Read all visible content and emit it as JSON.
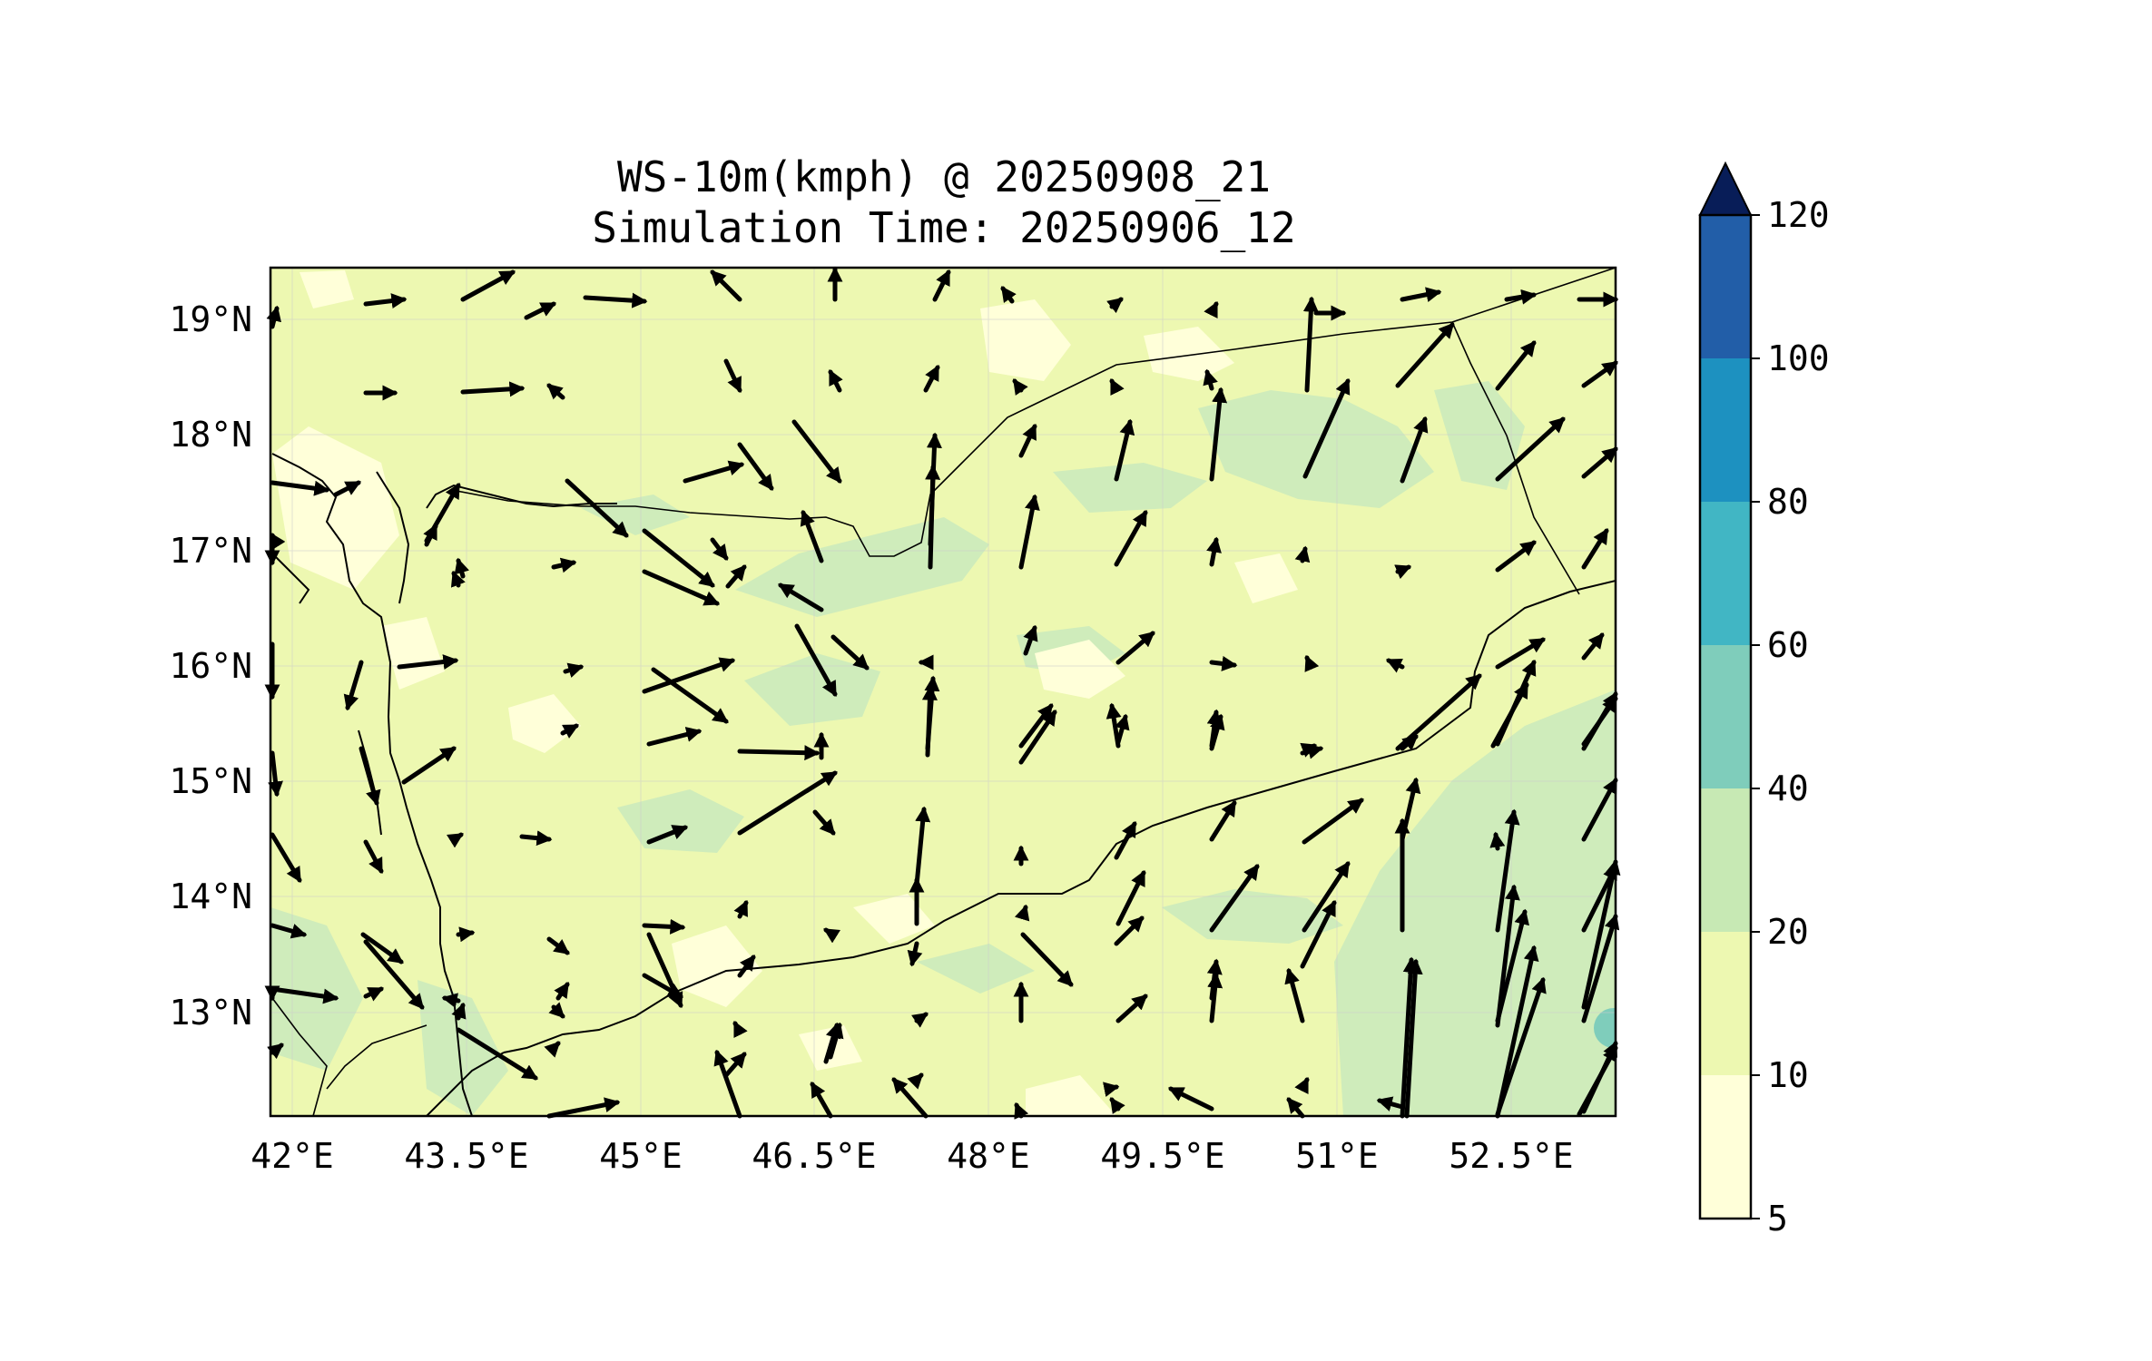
{
  "title": {
    "line1": "WS-10m(kmph) @ 20250908_21",
    "line2": "Simulation Time: 20250906_12"
  },
  "map": {
    "x_ticks": [
      "42°E",
      "43.5°E",
      "45°E",
      "46.5°E",
      "48°E",
      "49.5°E",
      "51°E",
      "52.5°E"
    ],
    "x_tick_values": [
      42,
      43.5,
      45,
      46.5,
      48,
      49.5,
      51,
      52.5
    ],
    "y_ticks": [
      "19°N",
      "18°N",
      "17°N",
      "16°N",
      "15°N",
      "14°N",
      "13°N"
    ],
    "y_tick_values": [
      19,
      18,
      17,
      16,
      15,
      14,
      13
    ],
    "lon_range": [
      41.95,
      53.8
    ],
    "lat_range": [
      12.1,
      19.45
    ],
    "gridlines": true
  },
  "colorbar": {
    "labels": [
      "5",
      "10",
      "20",
      "40",
      "60",
      "80",
      "100",
      "120"
    ],
    "levels": [
      5,
      10,
      20,
      40,
      60,
      80,
      100,
      120
    ],
    "colors": [
      "#ffffd9",
      "#edf8b1",
      "#c7e9b4",
      "#7fcdbb",
      "#41b6c4",
      "#1d91c0",
      "#225ea8",
      "#0c2c84"
    ],
    "extend_color": "#081d58"
  },
  "field_colors": {
    "lt10": "#ffffd9",
    "c10_20": "#edf8b1",
    "c20_40": "#cfecbb",
    "c40_60": "#7fcdbb"
  }
}
